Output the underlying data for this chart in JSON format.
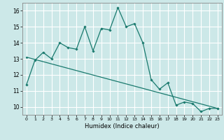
{
  "xlabel": "Humidex (Indice chaleur)",
  "background_color": "#cce8e8",
  "grid_color": "#ffffff",
  "line_color": "#1a7a6e",
  "xlim": [
    -0.5,
    23.5
  ],
  "ylim": [
    9.5,
    16.5
  ],
  "xticks": [
    0,
    1,
    2,
    3,
    4,
    5,
    6,
    7,
    8,
    9,
    10,
    11,
    12,
    13,
    14,
    15,
    16,
    17,
    18,
    19,
    20,
    21,
    22,
    23
  ],
  "yticks": [
    10,
    11,
    12,
    13,
    14,
    15,
    16
  ],
  "line1_x": [
    0,
    1,
    2,
    3,
    4,
    5,
    6,
    7,
    8,
    9,
    10,
    11,
    12,
    13,
    14,
    15,
    16,
    17,
    18,
    19,
    20,
    21,
    22,
    23
  ],
  "line1_y": [
    11.4,
    12.9,
    13.4,
    13.0,
    14.0,
    13.7,
    13.6,
    15.0,
    13.5,
    14.9,
    14.8,
    16.2,
    15.0,
    15.2,
    14.0,
    11.7,
    11.1,
    11.5,
    10.1,
    10.3,
    10.2,
    9.7,
    9.9,
    9.9
  ],
  "line2_x": [
    0,
    23
  ],
  "line2_y": [
    13.1,
    9.9
  ]
}
